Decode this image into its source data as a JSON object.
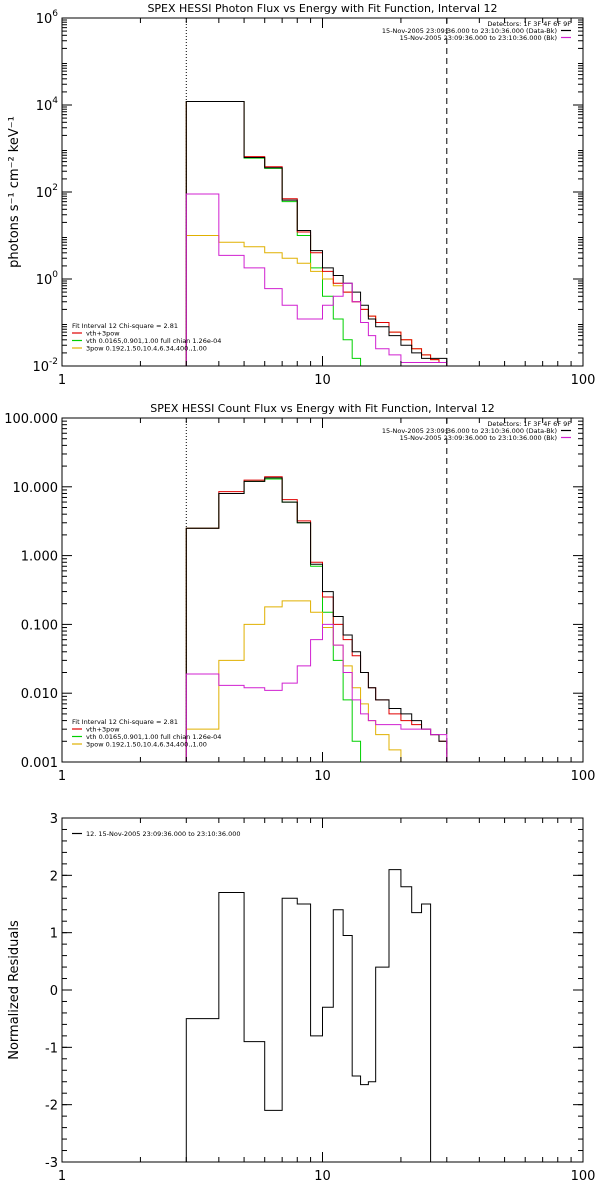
{
  "chart_data": [
    {
      "type": "line",
      "title": "SPEX HESSI Photon Flux vs Energy with Fit Function, Interval 12",
      "xlabel": "",
      "ylabel": "photons s⁻¹ cm⁻² keV⁻¹",
      "xscale": "log",
      "yscale": "log",
      "xlim": [
        1,
        100
      ],
      "ylim": [
        0.01,
        1000000
      ],
      "x_ticks": [
        1,
        10,
        100
      ],
      "x_tick_labels": [
        "1",
        "10",
        "100"
      ],
      "y_ticks": [
        0.01,
        1,
        100,
        10000,
        1000000
      ],
      "y_tick_labels": [
        [
          "10",
          "-2"
        ],
        [
          "10",
          "0"
        ],
        [
          "10",
          "2"
        ],
        [
          "10",
          "4"
        ],
        [
          "10",
          "6"
        ]
      ],
      "vlines": [
        {
          "x": 3,
          "style": "dotted"
        },
        {
          "x": 30,
          "style": "dashed"
        }
      ],
      "legend_top": {
        "header": "Detectors: 1F 3F 4F 6F 9F",
        "entries": [
          {
            "label": "15-Nov-2005 23:09:36.000 to 23:10:36.000 (Data-Bk)",
            "color": "#000000"
          },
          {
            "label": "15-Nov-2005 23:09:36.000 to 23:10:36.000 (Bk)",
            "color": "#d020d0"
          }
        ]
      },
      "legend_bottom": {
        "header": "Fit Interval 12   Chi-square = 2.81",
        "entries": [
          {
            "label": "vth+3pow",
            "color": "#e00000"
          },
          {
            "label": "vth 0.0165,0.901,1.00  full chian 1.26e-04",
            "color": "#00d000"
          },
          {
            "label": "3pow 0.192,1.50,10.4,6.34,400.,1.00",
            "color": "#e0b000"
          }
        ]
      },
      "bin_edges": [
        3,
        4,
        5,
        6,
        7,
        8,
        9,
        10,
        11,
        12,
        13,
        14,
        15,
        16,
        18,
        20,
        22,
        24,
        26,
        28,
        30
      ],
      "series": [
        {
          "color": "#00d000",
          "values": [
            12000,
            12000,
            600,
            350,
            60,
            10,
            1.8,
            0.4,
            0.12,
            0.04,
            0.015,
            0.01
          ]
        },
        {
          "color": "#e0b000",
          "values": [
            10,
            7,
            5.5,
            4,
            3,
            2.3,
            1.5,
            1,
            0.7,
            0.5,
            0.3,
            0.2,
            0.14,
            0.1,
            0.06,
            0.04,
            0.025,
            0.018,
            0.014,
            0.012
          ]
        },
        {
          "color": "#e00000",
          "values": [
            12000,
            12000,
            650,
            380,
            70,
            12,
            4,
            1.5,
            0.8,
            0.5,
            0.3,
            0.2,
            0.14,
            0.1,
            0.06,
            0.04,
            0.025,
            0.018,
            0.014,
            0.012
          ]
        },
        {
          "color": "#000000",
          "values": [
            12000,
            12000,
            620,
            360,
            65,
            13,
            4.5,
            1.8,
            1.2,
            0.8,
            0.5,
            0.25,
            0.12,
            0.08,
            0.05,
            0.03,
            0.02,
            0.015,
            0.015,
            0.015
          ]
        },
        {
          "color": "#d020d0",
          "values": [
            90,
            3.5,
            1.8,
            0.6,
            0.25,
            0.12,
            0.12,
            0.25,
            0.4,
            0.8,
            0.3,
            0.1,
            0.05,
            0.025,
            0.018,
            0.012,
            0.012,
            0.012,
            0.012,
            0.012
          ]
        }
      ]
    },
    {
      "type": "line",
      "title": "SPEX HESSI Count Flux vs Energy with Fit Function, Interval 12",
      "xlabel": "",
      "ylabel": "",
      "xscale": "log",
      "yscale": "log",
      "xlim": [
        1,
        100
      ],
      "ylim": [
        0.001,
        100
      ],
      "x_ticks": [
        1,
        10,
        100
      ],
      "x_tick_labels": [
        "1",
        "10",
        "100"
      ],
      "y_ticks": [
        0.001,
        0.01,
        0.1,
        1,
        10,
        100
      ],
      "y_tick_labels": [
        "0.001",
        "0.010",
        "0.100",
        "1.000",
        "10.000",
        "100.000"
      ],
      "vlines": [
        {
          "x": 3,
          "style": "dotted"
        },
        {
          "x": 30,
          "style": "dashed"
        }
      ],
      "legend_top": {
        "header": "Detectors: 1F 3F 4F 6F 9F",
        "entries": [
          {
            "label": "15-Nov-2005 23:09:36.000 to 23:10:36.000 (Data-Bk)",
            "color": "#000000"
          },
          {
            "label": "15-Nov-2005 23:09:36.000 to 23:10:36.000 (Bk)",
            "color": "#d020d0"
          }
        ]
      },
      "legend_bottom": {
        "header": "Fit Interval 12   Chi-square = 2.81",
        "entries": [
          {
            "label": "vth+3pow",
            "color": "#e00000"
          },
          {
            "label": "vth 0.0165,0.901,1.00  full chian 1.26e-04",
            "color": "#00d000"
          },
          {
            "label": "3pow 0.192,1.50,10.4,6.34,400.,1.00",
            "color": "#e0b000"
          }
        ]
      },
      "bin_edges": [
        3,
        4,
        5,
        6,
        7,
        8,
        9,
        10,
        11,
        12,
        13,
        14,
        15,
        16,
        18,
        20,
        22,
        24,
        26,
        28,
        30
      ],
      "series": [
        {
          "color": "#00d000",
          "values": [
            2.5,
            8,
            12,
            13,
            6,
            3,
            0.7,
            0.15,
            0.03,
            0.008,
            0.002,
            0.001
          ]
        },
        {
          "color": "#e0b000",
          "values": [
            0.003,
            0.03,
            0.1,
            0.18,
            0.22,
            0.22,
            0.15,
            0.09,
            0.05,
            0.025,
            0.012,
            0.007,
            0.004,
            0.0025,
            0.0015,
            0.001
          ]
        },
        {
          "color": "#e00000",
          "values": [
            2.5,
            8.5,
            12.5,
            14,
            6.5,
            3.2,
            0.8,
            0.25,
            0.1,
            0.06,
            0.035,
            0.02,
            0.012,
            0.008,
            0.005,
            0.004,
            0.0035,
            0.003,
            0.0025,
            0.002
          ]
        },
        {
          "color": "#000000",
          "values": [
            2.5,
            8,
            12,
            13.5,
            6,
            3,
            0.75,
            0.3,
            0.13,
            0.07,
            0.04,
            0.02,
            0.012,
            0.008,
            0.006,
            0.005,
            0.004,
            0.003,
            0.0025,
            0.002
          ]
        },
        {
          "color": "#d020d0",
          "values": [
            0.019,
            0.013,
            0.012,
            0.011,
            0.014,
            0.025,
            0.06,
            0.1,
            0.05,
            0.02,
            0.008,
            0.005,
            0.004,
            0.0035,
            0.0035,
            0.003,
            0.003,
            0.003,
            0.0025,
            0.0025
          ]
        }
      ]
    },
    {
      "type": "line",
      "title": "",
      "xlabel": "",
      "ylabel": "Normalized Residuals",
      "xscale": "log",
      "yscale": "linear",
      "xlim": [
        1,
        100
      ],
      "ylim": [
        -3,
        3
      ],
      "x_ticks": [
        1,
        10,
        100
      ],
      "x_tick_labels": [
        "1",
        "10",
        "100"
      ],
      "y_ticks": [
        -3,
        -2,
        -1,
        0,
        1,
        2,
        3
      ],
      "y_tick_labels": [
        "-3",
        "-2",
        "-1",
        "0",
        "1",
        "2",
        "3"
      ],
      "legend_top_left": {
        "entries": [
          {
            "label": "12. 15-Nov-2005 23:09:36.000 to 23:10:36.000",
            "color": "#000000"
          }
        ]
      },
      "bin_edges": [
        3,
        4,
        5,
        6,
        7,
        8,
        9,
        10,
        11,
        12,
        13,
        14,
        15,
        16,
        18,
        20,
        22,
        24,
        26,
        28,
        30
      ],
      "series": [
        {
          "color": "#000000",
          "values": [
            -0.5,
            1.7,
            -0.9,
            -2.1,
            1.6,
            1.5,
            -0.8,
            -0.3,
            1.4,
            0.95,
            -1.5,
            -1.65,
            -1.6,
            0.4,
            2.1,
            1.8,
            1.35,
            1.5
          ]
        }
      ]
    }
  ]
}
